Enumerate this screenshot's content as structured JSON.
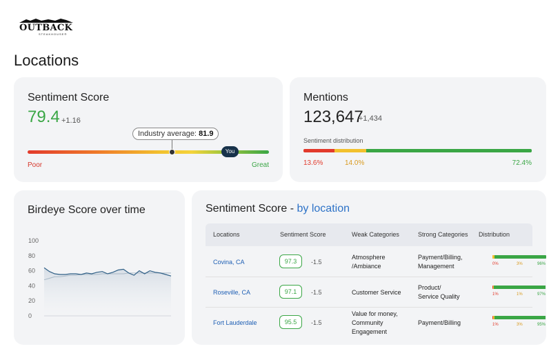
{
  "brand": {
    "logo_text": "OUTBACK",
    "logo_subtext": "STEAKHOUSE®"
  },
  "page": {
    "title": "Locations"
  },
  "sentiment_score": {
    "title": "Sentiment Score",
    "value": "79.4",
    "delta": "+1.16",
    "industry_label": "Industry average: ",
    "industry_value": "81.9",
    "you_label": "You",
    "poor_label": "Poor",
    "great_label": "Great"
  },
  "mentions": {
    "title": "Mentions",
    "value": "123,647",
    "delta": "+1,434",
    "distribution_label": "Sentiment distribution",
    "negative_pct": "13.6%",
    "neutral_pct": "14.0%",
    "positive_pct": "72.4%",
    "negative_share": 13.6,
    "neutral_share": 14.0,
    "positive_share": 72.4
  },
  "birdeye": {
    "title": "Birdeye Score over time",
    "chart_data": {
      "type": "line",
      "ylim": [
        0,
        100
      ],
      "y_ticks": [
        "100",
        "80",
        "60",
        "40",
        "20",
        "0"
      ],
      "series": [
        {
          "values": [
            64,
            59,
            56,
            55,
            55,
            56,
            56,
            55,
            57,
            56,
            58,
            59,
            56,
            58,
            61,
            62,
            57,
            54,
            60,
            56,
            60,
            58,
            57,
            55,
            53
          ]
        },
        {
          "values": [
            48,
            50,
            52,
            52,
            53,
            54,
            54,
            55,
            55,
            55,
            55,
            56,
            56,
            56,
            56,
            56,
            57,
            57,
            57,
            57,
            57,
            57,
            57,
            57,
            57
          ]
        }
      ]
    }
  },
  "table": {
    "title_prefix": "Sentiment Score - ",
    "title_accent": "by location",
    "headers": {
      "locations": "Locations",
      "sentiment": "Sentiment Score",
      "weak": "Weak Categories",
      "strong": "Strong Categories",
      "distribution": "Distribution"
    },
    "rows": [
      {
        "location": "Covina, CA",
        "score": "97.3",
        "delta": "-1.5",
        "weak_1": "Atmosphere",
        "weak_2": "/Ambiance",
        "weak_3": "",
        "strong_1": "Payment/Billing,",
        "strong_2": "Management",
        "neg": "0%",
        "neu": "3%",
        "pos": "96%",
        "neg_share": 0.5,
        "neu_share": 3,
        "pos_share": 96
      },
      {
        "location": "Roseville, CA",
        "score": "97.1",
        "delta": "-1.5",
        "weak_1": "Customer Service",
        "weak_2": "",
        "weak_3": "",
        "strong_1": "Product/",
        "strong_2": "Service Quality",
        "neg": "1%",
        "neu": "1%",
        "pos": "97%",
        "neg_share": 1,
        "neu_share": 1,
        "pos_share": 97
      },
      {
        "location": "Fort Lauderdale",
        "score": "95.5",
        "delta": "-1.5",
        "weak_1": "Value for money,",
        "weak_2": "Community",
        "weak_3": "Engagement",
        "strong_1": "Payment/Billing",
        "strong_2": "",
        "neg": "1%",
        "neu": "3%",
        "pos": "95%",
        "neg_share": 1,
        "neu_share": 3,
        "pos_share": 95
      }
    ]
  },
  "colors": {
    "red": "#e23a2c",
    "yellow": "#f2c12e",
    "green": "#3aa645",
    "orange": "#d99a1e",
    "link": "#1e5fb4"
  }
}
